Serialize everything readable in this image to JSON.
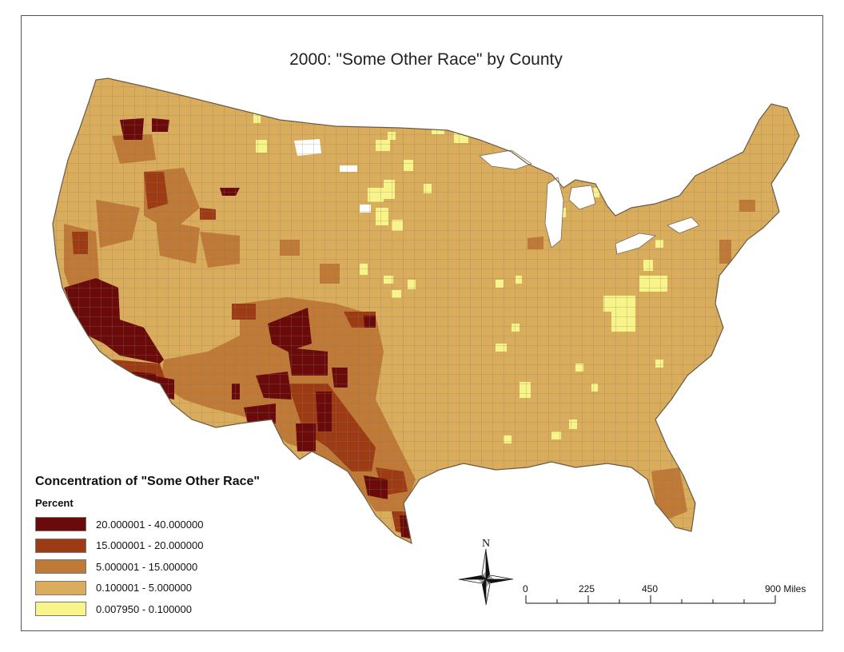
{
  "title": "2000: \"Some Other Race\" by County",
  "legend": {
    "title": "Concentration of \"Some Other Race\"",
    "subtitle": "Percent",
    "classes": [
      {
        "label": "20.000001 - 40.000000",
        "color": "#6b0a0a"
      },
      {
        "label": "15.000001 - 20.000000",
        "color": "#9c3b14"
      },
      {
        "label": "5.000001 - 15.000000",
        "color": "#c07a37"
      },
      {
        "label": "0.100001 - 5.000000",
        "color": "#d9ad5c"
      },
      {
        "label": "0.007950 - 0.100000",
        "color": "#f7f48a"
      }
    ]
  },
  "north_arrow": {
    "label": "N",
    "icon": "compass-rose-icon"
  },
  "scale_bar": {
    "labels": [
      "0",
      "225",
      "450",
      "900 Miles"
    ]
  },
  "colors": {
    "boundary": "#7a6a55",
    "background": "#ffffff"
  }
}
